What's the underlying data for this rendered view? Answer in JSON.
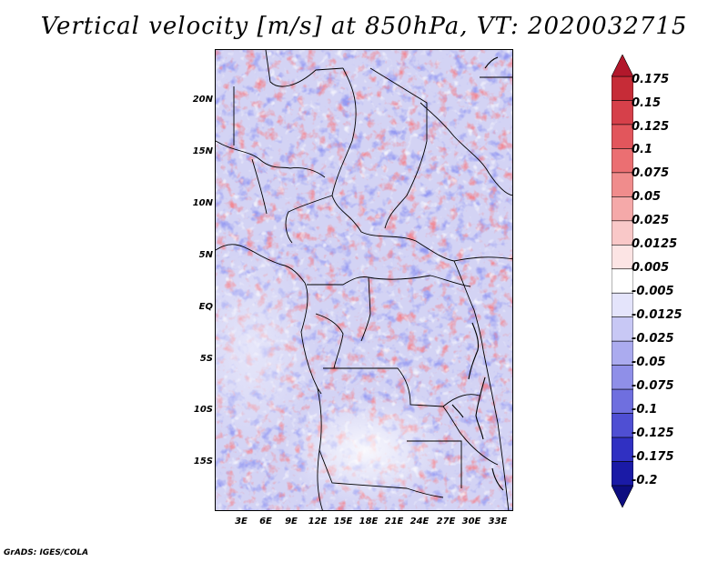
{
  "title": "Vertical velocity [m/s] at 850hPa, VT: 2020032715",
  "credit": "GrADS: IGES/COLA",
  "map": {
    "lat_labels": [
      "20N",
      "15N",
      "10N",
      "5N",
      "EQ",
      "5S",
      "10S",
      "15S"
    ],
    "lon_labels": [
      "3E",
      "6E",
      "9E",
      "12E",
      "15E",
      "18E",
      "21E",
      "24E",
      "27E",
      "30E",
      "33E"
    ]
  },
  "colorbar": {
    "labels": [
      "0.175",
      "0.15",
      "0.125",
      "0.1",
      "0.075",
      "0.05",
      "0.025",
      "0.0125",
      "0.005",
      "-0.005",
      "-0.0125",
      "-0.025",
      "-0.05",
      "-0.075",
      "-0.1",
      "-0.125",
      "-0.175",
      "-0.2"
    ],
    "colors": [
      "#b2182b",
      "#c62c37",
      "#d6404a",
      "#e2565c",
      "#eb6f72",
      "#f08c8c",
      "#f5a9a9",
      "#f9c8c8",
      "#fce4e4",
      "#ffffff",
      "#e4e4fb",
      "#c8c8f5",
      "#ababef",
      "#8f8fe8",
      "#6f6fdf",
      "#4f4fd3",
      "#3030c2",
      "#1a1aa6",
      "#0d0d80"
    ]
  }
}
